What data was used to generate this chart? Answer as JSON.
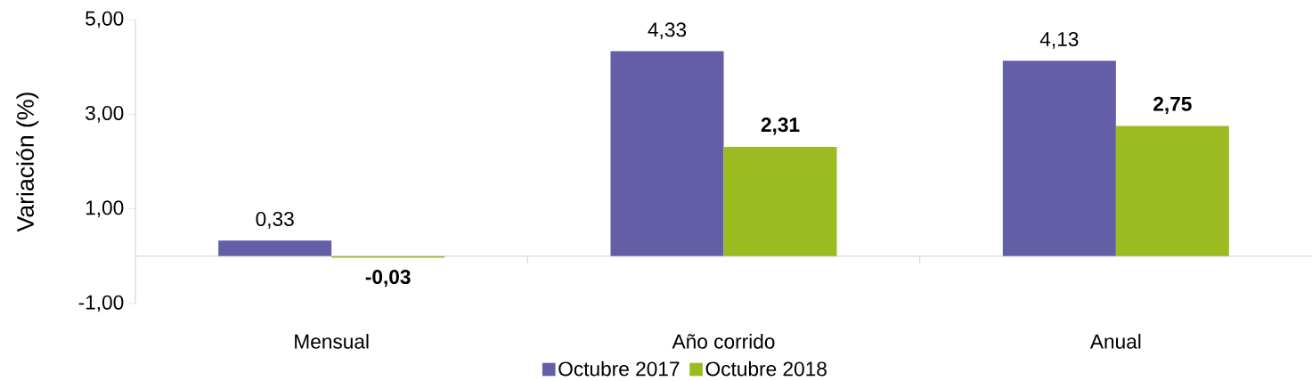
{
  "chart_data": {
    "type": "bar",
    "ylabel": "Variación (%)",
    "categories": [
      "Mensual",
      "Año corrido",
      "Anual"
    ],
    "series": [
      {
        "name": "Octubre 2017",
        "color": "#635ea6",
        "values": [
          0.33,
          4.33,
          4.13
        ],
        "value_labels": [
          "0,33",
          "4,33",
          "4,13"
        ]
      },
      {
        "name": "Octubre 2018",
        "color": "#9bbb21",
        "values": [
          -0.03,
          2.31,
          2.75
        ],
        "value_labels": [
          "**-0,03**",
          "**2,31**",
          "**2,75**"
        ]
      }
    ],
    "ylim": [
      -1,
      5
    ],
    "yticks": [
      {
        "value": -1,
        "label": "-1,00"
      },
      {
        "value": 1,
        "label": "1,00"
      },
      {
        "value": 3,
        "label": "3,00"
      },
      {
        "value": 5,
        "label": "5,00"
      }
    ],
    "legend": "bottom"
  }
}
